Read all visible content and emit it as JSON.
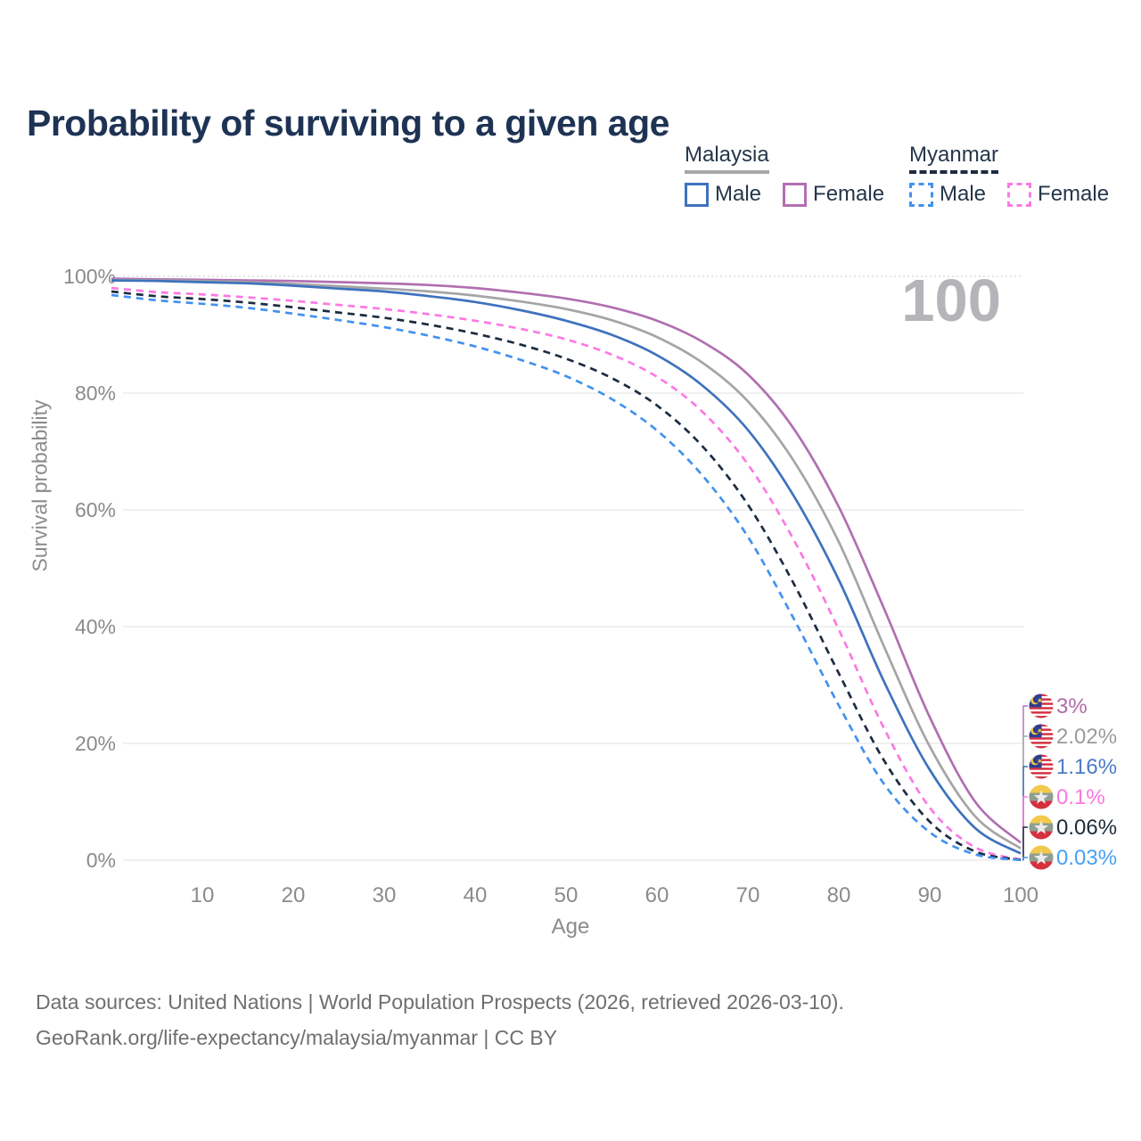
{
  "header": {
    "title": "Probability of surviving to a given age"
  },
  "legend": {
    "groups": [
      {
        "id": "malaysia",
        "label": "Malaysia",
        "line_style": "solid",
        "line_color": "#a7a7a7",
        "items": [
          {
            "label": "Male",
            "swatch_color": "#3e72bd",
            "swatch_style": "solid"
          },
          {
            "label": "Female",
            "swatch_color": "#b36fb0",
            "swatch_style": "solid"
          }
        ]
      },
      {
        "id": "myanmar",
        "label": "Myanmar",
        "line_style": "dashed",
        "line_color": "#1c2c40",
        "items": [
          {
            "label": "Male",
            "swatch_color": "#4292ef",
            "swatch_style": "dashed"
          },
          {
            "label": "Female",
            "swatch_color": "#fb79e4",
            "swatch_style": "dashed"
          }
        ]
      }
    ]
  },
  "watermark": "100",
  "chart_data": {
    "type": "line",
    "title": "Probability of surviving to a given age",
    "xlabel": "Age",
    "ylabel": "Survival probability",
    "xlim": [
      0,
      100
    ],
    "ylim": [
      0,
      100
    ],
    "grid": "horizontal",
    "xticks": [
      10,
      20,
      30,
      40,
      50,
      60,
      70,
      80,
      90,
      100
    ],
    "yticks": [
      {
        "value": 0,
        "label": "0%"
      },
      {
        "value": 20,
        "label": "20%"
      },
      {
        "value": 40,
        "label": "40%"
      },
      {
        "value": 60,
        "label": "60%"
      },
      {
        "value": 80,
        "label": "80%"
      },
      {
        "value": 100,
        "label": "100%"
      }
    ],
    "x": [
      0,
      5,
      10,
      15,
      20,
      25,
      30,
      35,
      40,
      45,
      50,
      55,
      60,
      65,
      70,
      75,
      80,
      85,
      90,
      95,
      100
    ],
    "series": [
      {
        "id": "malaysia-female",
        "flag": "malaysia",
        "color": "#b16fb1",
        "dash": "solid",
        "end_label": "3%",
        "end_label_color": "#b16ba7",
        "values": [
          99.6,
          99.5,
          99.4,
          99.3,
          99.2,
          99.0,
          98.8,
          98.5,
          98.0,
          97.2,
          96.2,
          94.7,
          92.4,
          88.8,
          83.2,
          74.0,
          60.5,
          43.0,
          24.5,
          10.0,
          3.0
        ]
      },
      {
        "id": "malaysia-combined",
        "flag": "malaysia",
        "color": "#a5a5a5",
        "dash": "solid",
        "end_label": "2.02%",
        "end_label_color": "#9b9b9b",
        "values": [
          99.4,
          99.3,
          99.2,
          99.0,
          98.7,
          98.3,
          97.9,
          97.4,
          96.7,
          95.7,
          94.4,
          92.5,
          89.6,
          85.2,
          78.6,
          68.5,
          54.5,
          36.5,
          19.5,
          7.5,
          2.02
        ]
      },
      {
        "id": "malaysia-male",
        "flag": "malaysia",
        "color": "#3e72bd",
        "dash": "solid",
        "end_label": "1.16%",
        "end_label_color": "#4a7bc4",
        "values": [
          99.3,
          99.2,
          99.0,
          98.8,
          98.4,
          97.9,
          97.4,
          96.6,
          95.6,
          94.2,
          92.4,
          90.0,
          86.5,
          81.3,
          73.7,
          62.5,
          48.0,
          30.5,
          15.5,
          5.5,
          1.16
        ]
      },
      {
        "id": "myanmar-female",
        "flag": "myanmar",
        "color": "#fb79e4",
        "dash": "dashed",
        "end_label": "0.1%",
        "end_label_color": "#fb77e0",
        "values": [
          98.0,
          97.3,
          96.9,
          96.4,
          95.8,
          95.1,
          94.4,
          93.5,
          92.4,
          91.0,
          89.2,
          86.6,
          82.8,
          76.8,
          67.8,
          55.0,
          39.5,
          22.5,
          9.0,
          2.2,
          0.1
        ]
      },
      {
        "id": "myanmar-combined",
        "flag": "myanmar",
        "color": "#1c2c40",
        "dash": "dashed",
        "end_label": "0.06%",
        "end_label_color": "#1d2b3a",
        "values": [
          97.4,
          96.6,
          96.1,
          95.5,
          94.7,
          93.8,
          92.9,
          91.7,
          90.2,
          88.3,
          85.9,
          82.6,
          77.9,
          70.9,
          60.9,
          47.5,
          32.0,
          17.0,
          6.6,
          1.5,
          0.06
        ]
      },
      {
        "id": "myanmar-male",
        "flag": "myanmar",
        "color": "#4292ef",
        "dash": "dashed",
        "end_label": "0.03%",
        "end_label_color": "#47a0f5",
        "values": [
          96.8,
          95.9,
          95.3,
          94.6,
          93.6,
          92.5,
          91.3,
          89.8,
          88.0,
          85.7,
          82.9,
          79.0,
          73.6,
          65.9,
          55.4,
          41.5,
          26.5,
          13.0,
          4.8,
          1.0,
          0.03
        ]
      }
    ]
  },
  "footer": {
    "line1": "Data sources: United Nations | World Population Prospects (2026, retrieved 2026-03-10).",
    "line2": "GeoRank.org/life-expectancy/malaysia/myanmar | CC BY"
  }
}
